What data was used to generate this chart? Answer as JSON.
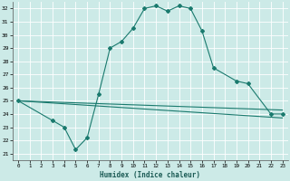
{
  "title": "",
  "xlabel": "Humidex (Indice chaleur)",
  "ylabel": "",
  "bg_color": "#cceae7",
  "grid_color": "#ffffff",
  "line_color": "#1a7a6e",
  "xlim": [
    -0.5,
    23.5
  ],
  "ylim": [
    20.5,
    32.5
  ],
  "xtick_labels": [
    "0",
    "1",
    "2",
    "3",
    "4",
    "5",
    "6",
    "7",
    "8",
    "9",
    "10",
    "11",
    "12",
    "13",
    "14",
    "15",
    "16",
    "17",
    "18",
    "19",
    "20",
    "21",
    "22",
    "23"
  ],
  "xtick_vals": [
    0,
    1,
    2,
    3,
    4,
    5,
    6,
    7,
    8,
    9,
    10,
    11,
    12,
    13,
    14,
    15,
    16,
    17,
    18,
    19,
    20,
    21,
    22,
    23
  ],
  "yticks": [
    21,
    22,
    23,
    24,
    25,
    26,
    27,
    28,
    29,
    30,
    31,
    32
  ],
  "main_line": {
    "x": [
      0,
      3,
      4,
      5,
      6,
      7,
      8,
      9,
      10,
      11,
      12,
      13,
      14,
      15,
      16,
      17,
      19,
      20,
      22,
      23
    ],
    "y": [
      25.0,
      23.5,
      23.0,
      21.3,
      22.2,
      25.5,
      29.0,
      29.5,
      30.5,
      32.0,
      32.2,
      31.8,
      32.2,
      32.0,
      30.3,
      27.5,
      26.5,
      26.3,
      24.0,
      24.0
    ]
  },
  "straight_line1": {
    "x": [
      0,
      23
    ],
    "y": [
      25.0,
      24.3
    ]
  },
  "straight_line2": {
    "x": [
      0,
      23
    ],
    "y": [
      25.0,
      23.7
    ]
  }
}
